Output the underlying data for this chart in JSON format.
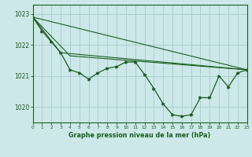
{
  "background_color": "#cde8e8",
  "plot_bg_color": "#cde8e8",
  "grid_color": "#aacfcf",
  "line_color": "#1a5e20",
  "title": "Graphe pression niveau de la mer (hPa)",
  "xlim": [
    0,
    23
  ],
  "ylim": [
    1019.5,
    1023.3
  ],
  "yticks": [
    1020,
    1021,
    1022,
    1023
  ],
  "xticks": [
    0,
    1,
    2,
    3,
    4,
    5,
    6,
    7,
    8,
    9,
    10,
    11,
    12,
    13,
    14,
    15,
    16,
    17,
    18,
    19,
    20,
    21,
    22,
    23
  ],
  "series1_x": [
    0,
    1,
    2,
    3,
    4,
    5,
    6,
    7,
    8,
    9,
    10,
    11,
    12,
    13,
    14,
    15,
    16,
    17,
    18,
    19,
    20,
    21,
    22,
    23
  ],
  "series1_y": [
    1022.9,
    1022.45,
    1022.1,
    1021.75,
    1021.2,
    1021.1,
    1020.9,
    1021.1,
    1021.25,
    1021.3,
    1021.45,
    1021.45,
    1021.05,
    1020.6,
    1020.1,
    1019.75,
    1019.7,
    1019.75,
    1020.3,
    1020.3,
    1021.0,
    1020.65,
    1021.1,
    1021.2
  ],
  "line2_x": [
    0,
    23
  ],
  "line2_y": [
    1022.9,
    1021.2
  ],
  "line3_x": [
    0,
    3,
    23
  ],
  "line3_y": [
    1022.9,
    1021.75,
    1021.2
  ],
  "line4_x": [
    0,
    4,
    23
  ],
  "line4_y": [
    1022.9,
    1021.65,
    1021.2
  ]
}
